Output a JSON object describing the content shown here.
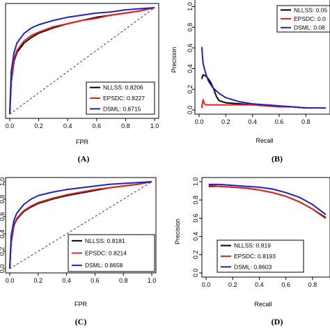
{
  "colors": {
    "black": "#000000",
    "red": "#e8221f",
    "blue": "#1f1fc8",
    "diagonal": "#333333"
  },
  "chart_data": [
    {
      "id": "A",
      "caption": "(A)",
      "type": "line",
      "xlabel": "FPR",
      "ylabel": "",
      "xlim": [
        0,
        1
      ],
      "ylim": [
        0,
        1
      ],
      "xticks": [
        "0.0",
        "0.2",
        "0.4",
        "0.6",
        "0.8",
        "1.0"
      ],
      "yticks": [],
      "diagonal": true,
      "legend": {
        "position": "bottom-right",
        "entries": [
          "NLLSS: 0.8206",
          "EPSDC: 0.8227",
          "DSML: 0.8715"
        ]
      },
      "series": [
        {
          "name": "NLLSS",
          "color": "black",
          "x": [
            0,
            0.01,
            0.03,
            0.05,
            0.1,
            0.15,
            0.2,
            0.3,
            0.4,
            0.5,
            0.6,
            0.7,
            0.8,
            0.9,
            1.0
          ],
          "y": [
            0,
            0.3,
            0.5,
            0.58,
            0.67,
            0.72,
            0.76,
            0.81,
            0.85,
            0.88,
            0.91,
            0.93,
            0.95,
            0.97,
            1.0
          ]
        },
        {
          "name": "EPSDC",
          "color": "red",
          "x": [
            0,
            0.01,
            0.03,
            0.05,
            0.1,
            0.15,
            0.2,
            0.3,
            0.4,
            0.5,
            0.6,
            0.7,
            0.8,
            0.9,
            1.0
          ],
          "y": [
            0,
            0.32,
            0.52,
            0.6,
            0.69,
            0.74,
            0.77,
            0.82,
            0.85,
            0.88,
            0.9,
            0.93,
            0.95,
            0.97,
            1.0
          ]
        },
        {
          "name": "DSML",
          "color": "blue",
          "x": [
            0,
            0.01,
            0.03,
            0.05,
            0.1,
            0.15,
            0.2,
            0.3,
            0.4,
            0.5,
            0.6,
            0.7,
            0.8,
            0.9,
            1.0
          ],
          "y": [
            0,
            0.4,
            0.58,
            0.67,
            0.76,
            0.81,
            0.84,
            0.88,
            0.91,
            0.93,
            0.95,
            0.96,
            0.98,
            0.99,
            1.0
          ]
        }
      ]
    },
    {
      "id": "B",
      "caption": "(B)",
      "type": "line",
      "xlabel": "Recall",
      "ylabel": "Precision",
      "xlim": [
        0,
        0.95
      ],
      "ylim": [
        0,
        1.05
      ],
      "xticks": [
        "0.0",
        "0.2",
        "0.4",
        "0.6",
        "0.8"
      ],
      "yticks": [
        "0.0",
        "0.2",
        "0.4",
        "0.6",
        "0.8",
        "1.0"
      ],
      "diagonal": false,
      "legend": {
        "position": "top-right",
        "entries": [
          "NLLSS: 0.05",
          "EPSDC: 0.0",
          "DSML: 0.08"
        ]
      },
      "series": [
        {
          "name": "NLLSS",
          "color": "black",
          "x": [
            0.02,
            0.03,
            0.05,
            0.07,
            0.09,
            0.11,
            0.13,
            0.15,
            0.2,
            0.3,
            0.4,
            0.5,
            0.6,
            0.7,
            0.8,
            0.95
          ],
          "y": [
            0.3,
            0.34,
            0.33,
            0.3,
            0.26,
            0.2,
            0.13,
            0.09,
            0.07,
            0.06,
            0.05,
            0.05,
            0.04,
            0.03,
            0.02,
            0.02
          ]
        },
        {
          "name": "EPSDC",
          "color": "red",
          "x": [
            0.02,
            0.03,
            0.04,
            0.05,
            0.1,
            0.2,
            0.3,
            0.4,
            0.5,
            0.6,
            0.7,
            0.8,
            0.95
          ],
          "y": [
            0.02,
            0.1,
            0.06,
            0.05,
            0.05,
            0.05,
            0.05,
            0.05,
            0.04,
            0.03,
            0.03,
            0.02,
            0.02
          ]
        },
        {
          "name": "DSML",
          "color": "blue",
          "x": [
            0.02,
            0.03,
            0.05,
            0.07,
            0.1,
            0.15,
            0.2,
            0.3,
            0.4,
            0.5,
            0.6,
            0.7,
            0.8,
            0.95
          ],
          "y": [
            0.61,
            0.45,
            0.35,
            0.28,
            0.22,
            0.16,
            0.12,
            0.08,
            0.06,
            0.05,
            0.04,
            0.03,
            0.02,
            0.02
          ]
        }
      ]
    },
    {
      "id": "C",
      "caption": "(C)",
      "type": "line",
      "xlabel": "FPR",
      "ylabel": "",
      "xlim": [
        0,
        1
      ],
      "ylim": [
        0,
        1
      ],
      "xticks": [
        "0.0",
        "0.2",
        "0.4",
        "0.6",
        "0.8",
        "1.0"
      ],
      "yticks": [
        "0.0",
        "0.2",
        "0.4",
        "0.6",
        "0.8",
        "1.0"
      ],
      "diagonal": true,
      "legend": {
        "position": "bottom-right",
        "entries": [
          "NLLSS: 0.8181",
          "EPSDC: 0.8214",
          "DSML: 0.8658"
        ]
      },
      "series": [
        {
          "name": "NLLSS",
          "color": "black",
          "x": [
            0,
            0.01,
            0.03,
            0.05,
            0.1,
            0.15,
            0.2,
            0.3,
            0.4,
            0.5,
            0.6,
            0.7,
            0.8,
            0.9,
            1.0
          ],
          "y": [
            0,
            0.3,
            0.5,
            0.57,
            0.66,
            0.71,
            0.75,
            0.8,
            0.84,
            0.87,
            0.9,
            0.93,
            0.95,
            0.97,
            1.0
          ]
        },
        {
          "name": "EPSDC",
          "color": "red",
          "x": [
            0,
            0.01,
            0.03,
            0.05,
            0.1,
            0.15,
            0.2,
            0.3,
            0.4,
            0.5,
            0.6,
            0.7,
            0.8,
            0.9,
            1.0
          ],
          "y": [
            0,
            0.32,
            0.51,
            0.58,
            0.67,
            0.72,
            0.76,
            0.81,
            0.85,
            0.88,
            0.91,
            0.93,
            0.95,
            0.97,
            1.0
          ]
        },
        {
          "name": "DSML",
          "color": "blue",
          "x": [
            0,
            0.01,
            0.03,
            0.05,
            0.1,
            0.15,
            0.2,
            0.3,
            0.4,
            0.5,
            0.6,
            0.7,
            0.8,
            0.9,
            1.0
          ],
          "y": [
            0,
            0.38,
            0.56,
            0.64,
            0.74,
            0.8,
            0.84,
            0.88,
            0.91,
            0.93,
            0.95,
            0.97,
            0.98,
            0.99,
            1.0
          ]
        }
      ]
    },
    {
      "id": "D",
      "caption": "(D)",
      "type": "line",
      "xlabel": "Recall",
      "ylabel": "Precision",
      "xlim": [
        0,
        0.9
      ],
      "ylim": [
        0,
        1.0
      ],
      "xticks": [
        "0.0",
        "0.2",
        "0.4",
        "0.6",
        "0.8"
      ],
      "yticks": [
        "0.0",
        "0.2",
        "0.4",
        "0.6",
        "0.8",
        "1.0"
      ],
      "diagonal": false,
      "legend": {
        "position": "bottom-right",
        "entries": [
          "NLLSS: 0.819",
          "EPSDC: 0.8193",
          "DSML: 0.8603"
        ]
      },
      "series": [
        {
          "name": "NLLSS",
          "color": "black",
          "x": [
            0.02,
            0.1,
            0.2,
            0.3,
            0.4,
            0.5,
            0.6,
            0.7,
            0.8,
            0.9
          ],
          "y": [
            0.95,
            0.95,
            0.94,
            0.93,
            0.91,
            0.88,
            0.84,
            0.78,
            0.7,
            0.6
          ]
        },
        {
          "name": "EPSDC",
          "color": "red",
          "x": [
            0.02,
            0.1,
            0.2,
            0.3,
            0.4,
            0.5,
            0.6,
            0.7,
            0.8,
            0.9
          ],
          "y": [
            0.96,
            0.95,
            0.94,
            0.93,
            0.91,
            0.88,
            0.84,
            0.78,
            0.7,
            0.61
          ]
        },
        {
          "name": "DSML",
          "color": "blue",
          "x": [
            0.02,
            0.1,
            0.2,
            0.3,
            0.4,
            0.5,
            0.6,
            0.7,
            0.8,
            0.9
          ],
          "y": [
            0.97,
            0.97,
            0.96,
            0.95,
            0.94,
            0.92,
            0.88,
            0.83,
            0.75,
            0.64
          ]
        }
      ]
    }
  ]
}
